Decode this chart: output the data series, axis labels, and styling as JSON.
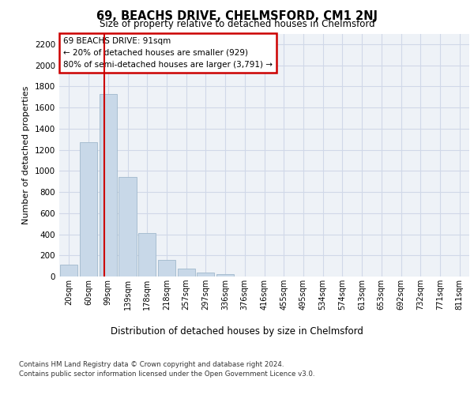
{
  "title": "69, BEACHS DRIVE, CHELMSFORD, CM1 2NJ",
  "subtitle": "Size of property relative to detached houses in Chelmsford",
  "xlabel": "Distribution of detached houses by size in Chelmsford",
  "ylabel": "Number of detached properties",
  "bar_labels": [
    "20sqm",
    "60sqm",
    "99sqm",
    "139sqm",
    "178sqm",
    "218sqm",
    "257sqm",
    "297sqm",
    "336sqm",
    "376sqm",
    "416sqm",
    "455sqm",
    "495sqm",
    "534sqm",
    "574sqm",
    "613sqm",
    "653sqm",
    "692sqm",
    "732sqm",
    "771sqm",
    "811sqm"
  ],
  "bar_values": [
    110,
    1270,
    1730,
    940,
    415,
    155,
    75,
    38,
    25,
    0,
    0,
    0,
    0,
    0,
    0,
    0,
    0,
    0,
    0,
    0,
    0
  ],
  "bar_color": "#c8d8e8",
  "bar_edgecolor": "#a0b8cc",
  "vline_color": "#cc0000",
  "annotation_line1": "69 BEACHS DRIVE: 91sqm",
  "annotation_line2": "← 20% of detached houses are smaller (929)",
  "annotation_line3": "80% of semi-detached houses are larger (3,791) →",
  "annotation_box_color": "#cc0000",
  "ylim": [
    0,
    2300
  ],
  "yticks": [
    0,
    200,
    400,
    600,
    800,
    1000,
    1200,
    1400,
    1600,
    1800,
    2000,
    2200
  ],
  "grid_color": "#d0d8e8",
  "background_color": "#eef2f7",
  "footer1": "Contains HM Land Registry data © Crown copyright and database right 2024.",
  "footer2": "Contains public sector information licensed under the Open Government Licence v3.0."
}
